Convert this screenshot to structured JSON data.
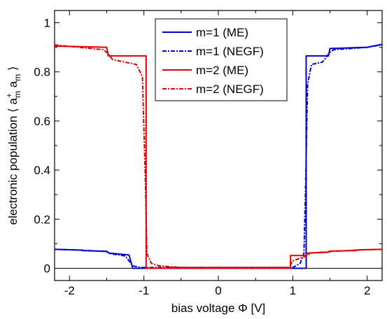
{
  "chart_data": {
    "type": "line",
    "xlabel": "bias voltage Φ [V]",
    "ylabel_prefix": "electronic population ⟨ a",
    "ylabel_sup": "+",
    "ylabel_sub1": "m",
    "ylabel_mid": " a",
    "ylabel_sub2": "m",
    "ylabel_suffix": " ⟩",
    "xlim": [
      -2.2,
      2.2
    ],
    "ylim": [
      -0.05,
      1.05
    ],
    "x_ticks": [
      -2,
      -1,
      0,
      1,
      2
    ],
    "x_tick_labels": [
      "-2",
      "-1",
      "0",
      "1",
      "2"
    ],
    "y_ticks": [
      0,
      0.2,
      0.4,
      0.6,
      0.8,
      1
    ],
    "y_tick_labels": [
      "0",
      "0.2",
      "0.4",
      "0.6",
      "0.8",
      "1"
    ],
    "zero_line": true,
    "grid": false,
    "legend_position": "top-center",
    "series": [
      {
        "name": "m=1 (ME)",
        "color": "#0000cc",
        "dash": "solid",
        "points": [
          [
            -2.2,
            0.077
          ],
          [
            -1.85,
            0.074
          ],
          [
            -1.82,
            0.072
          ],
          [
            -1.5,
            0.069
          ],
          [
            -1.47,
            0.062
          ],
          [
            -1.2,
            0.054
          ],
          [
            -1.15,
            0.0
          ],
          [
            1.18,
            0.0
          ],
          [
            1.18,
            0.865
          ],
          [
            1.48,
            0.865
          ],
          [
            1.5,
            0.895
          ],
          [
            2.0,
            0.9
          ],
          [
            2.2,
            0.912
          ]
        ]
      },
      {
        "name": "m=1 (NEGF)",
        "color": "#0000cc",
        "dash": "6,2,2,2",
        "points": [
          [
            -2.2,
            0.077
          ],
          [
            -1.85,
            0.074
          ],
          [
            -1.5,
            0.068
          ],
          [
            -1.46,
            0.06
          ],
          [
            -1.25,
            0.05
          ],
          [
            -1.15,
            0.01
          ],
          [
            -1.05,
            0.003
          ],
          [
            1.0,
            0.003
          ],
          [
            1.1,
            0.02
          ],
          [
            1.15,
            0.06
          ],
          [
            1.17,
            0.3
          ],
          [
            1.2,
            0.75
          ],
          [
            1.25,
            0.83
          ],
          [
            1.4,
            0.84
          ],
          [
            1.5,
            0.88
          ],
          [
            1.55,
            0.89
          ],
          [
            2.0,
            0.9
          ],
          [
            2.2,
            0.91
          ]
        ]
      },
      {
        "name": "m=2 (ME)",
        "color": "#dd0000",
        "dash": "solid",
        "points": [
          [
            -2.2,
            0.905
          ],
          [
            -1.5,
            0.9
          ],
          [
            -1.48,
            0.865
          ],
          [
            -0.97,
            0.865
          ],
          [
            -0.97,
            0.0
          ],
          [
            0.97,
            0.0
          ],
          [
            0.97,
            0.052
          ],
          [
            1.18,
            0.052
          ],
          [
            1.2,
            0.062
          ],
          [
            1.48,
            0.065
          ],
          [
            1.5,
            0.07
          ],
          [
            1.85,
            0.072
          ],
          [
            1.88,
            0.075
          ],
          [
            2.2,
            0.077
          ]
        ]
      },
      {
        "name": "m=2 (NEGF)",
        "color": "#dd0000",
        "dash": "6,2,2,2",
        "points": [
          [
            -2.2,
            0.91
          ],
          [
            -1.55,
            0.89
          ],
          [
            -1.5,
            0.88
          ],
          [
            -1.42,
            0.85
          ],
          [
            -1.1,
            0.83
          ],
          [
            -1.02,
            0.78
          ],
          [
            -0.98,
            0.35
          ],
          [
            -0.96,
            0.06
          ],
          [
            -0.9,
            0.02
          ],
          [
            -0.8,
            0.01
          ],
          [
            -0.5,
            0.003
          ],
          [
            0.95,
            0.003
          ],
          [
            1.0,
            0.03
          ],
          [
            1.18,
            0.05
          ],
          [
            1.25,
            0.062
          ],
          [
            1.5,
            0.068
          ],
          [
            1.85,
            0.074
          ],
          [
            2.2,
            0.077
          ]
        ]
      }
    ]
  }
}
